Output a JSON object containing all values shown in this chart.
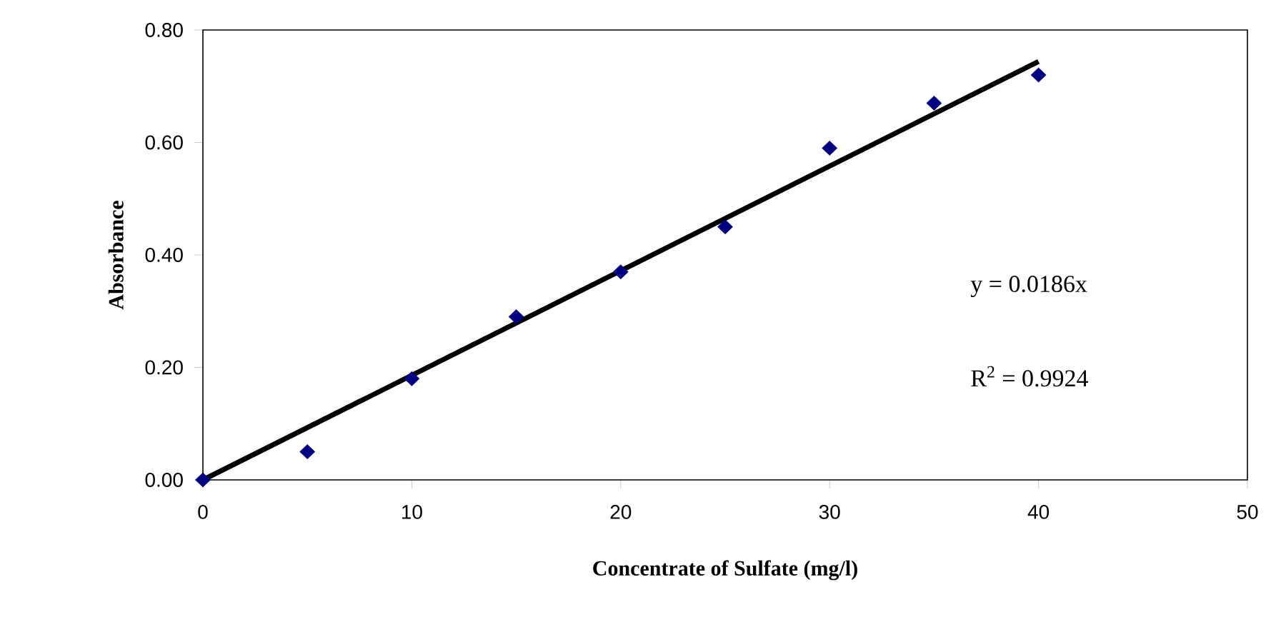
{
  "chart_data": {
    "type": "scatter",
    "xlabel": "Concentrate of Sulfate (mg/l)",
    "ylabel": "Absorbance",
    "xlim": [
      0,
      50
    ],
    "xticks": [
      0,
      10,
      20,
      30,
      40,
      50
    ],
    "ylim": [
      0,
      0.8
    ],
    "yticks": [
      {
        "value": 0,
        "label": "0.00"
      },
      {
        "value": 0.2,
        "label": "0.20"
      },
      {
        "value": 0.4,
        "label": "0.40"
      },
      {
        "value": 0.6,
        "label": "0.60"
      },
      {
        "value": 0.8,
        "label": "0.80"
      }
    ],
    "series": [
      {
        "color": "#000080",
        "marker": "diamond",
        "x": [
          0,
          5,
          10,
          15,
          20,
          25,
          30,
          35,
          40
        ],
        "values": [
          0,
          0.05,
          0.18,
          0.29,
          0.37,
          0.45,
          0.59,
          0.67,
          0.72
        ]
      },
      {
        "type": "line",
        "color": "#000000",
        "marker": "none",
        "line_style": "solid",
        "x": [
          0,
          40
        ],
        "values": [
          0,
          0.744
        ]
      }
    ],
    "annotations": [
      "y = 0.0186x",
      "R$^{2}$ = 0.9924"
    ]
  }
}
